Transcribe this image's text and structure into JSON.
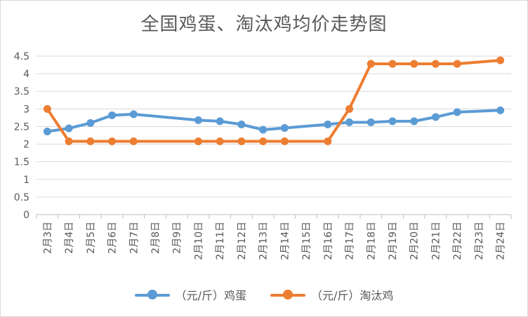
{
  "chart_data": {
    "type": "line",
    "title": "全国鸡蛋、淘汰鸡均价走势图",
    "xlabel": "",
    "ylabel": "",
    "categories": [
      "2月3日",
      "2月4日",
      "2月5日",
      "2月6日",
      "2月7日",
      "2月8日",
      "2月9日",
      "2月10日",
      "2月11日",
      "2月12日",
      "2月13日",
      "2月14日",
      "2月15日",
      "2月16日",
      "2月17日",
      "2月18日",
      "2月19日",
      "2月20日",
      "2月21日",
      "2月22日",
      "2月23日",
      "2月24日"
    ],
    "yticks": [
      "0",
      "0.5",
      "1",
      "1.5",
      "2",
      "2.5",
      "3",
      "3.5",
      "4",
      "4.5"
    ],
    "ylim": [
      0,
      4.5
    ],
    "grid": true,
    "legend_position": "bottom",
    "series": [
      {
        "name": "（元/斤）鸡蛋",
        "color": "#5b9bd5",
        "values": [
          2.36,
          2.45,
          2.6,
          2.82,
          2.85,
          null,
          null,
          2.68,
          2.65,
          2.56,
          2.41,
          2.46,
          null,
          2.56,
          2.62,
          2.62,
          2.65,
          2.65,
          2.77,
          2.91,
          null,
          2.96
        ]
      },
      {
        "name": "（元/斤）淘汰鸡",
        "color": "#ed7d31",
        "values": [
          3.0,
          2.08,
          2.08,
          2.08,
          2.08,
          null,
          null,
          2.08,
          2.08,
          2.08,
          2.08,
          2.08,
          null,
          2.08,
          3.0,
          4.28,
          4.28,
          4.28,
          4.28,
          4.28,
          null,
          4.38
        ]
      }
    ]
  }
}
